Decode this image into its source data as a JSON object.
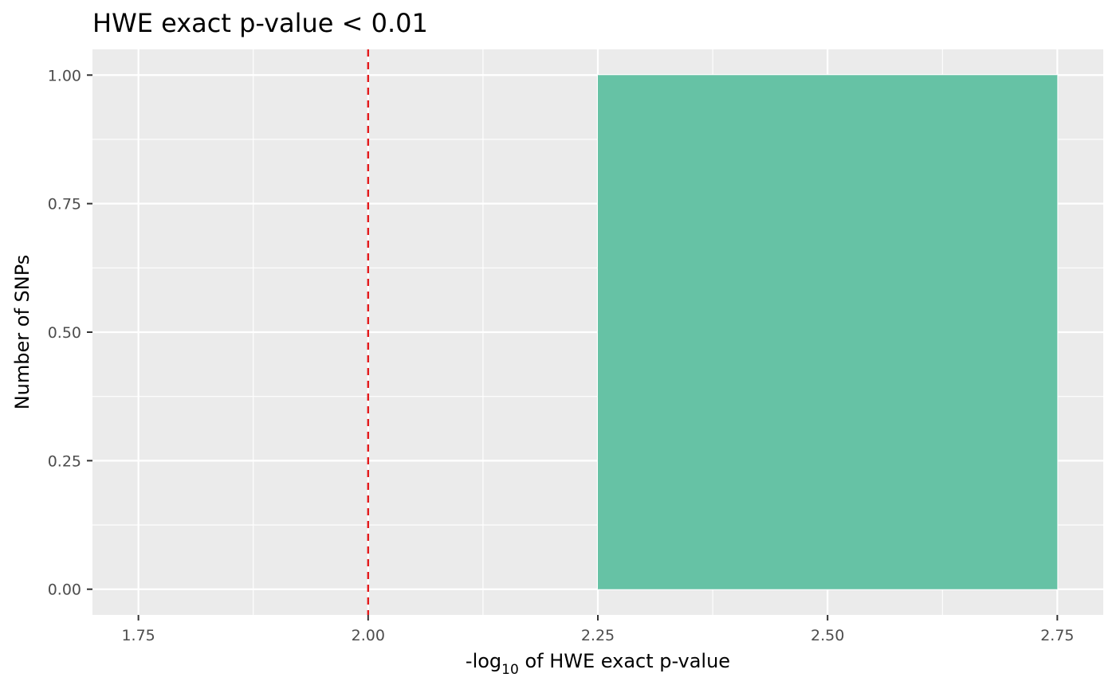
{
  "chart_data": {
    "type": "bar",
    "title": "HWE exact p-value < 0.01",
    "xlabel": {
      "prefix": "-log",
      "subscript": "10",
      "suffix": " of HWE exact p-value"
    },
    "ylabel": "Number of SNPs",
    "xlim": [
      1.7,
      2.8
    ],
    "ylim": [
      -0.05,
      1.05
    ],
    "x_ticks": [
      {
        "value": 1.75,
        "label": "1.75"
      },
      {
        "value": 2.0,
        "label": "2.00"
      },
      {
        "value": 2.25,
        "label": "2.25"
      },
      {
        "value": 2.5,
        "label": "2.50"
      },
      {
        "value": 2.75,
        "label": "2.75"
      }
    ],
    "y_ticks": [
      {
        "value": 0,
        "label": "0.00"
      },
      {
        "value": 0.25,
        "label": "0.25"
      },
      {
        "value": 0.5,
        "label": "0.50"
      },
      {
        "value": 0.75,
        "label": "0.75"
      },
      {
        "value": 1.0,
        "label": "1.00"
      }
    ],
    "bins": [
      {
        "xmin": 2.25,
        "xmax": 2.75,
        "count": 1
      }
    ],
    "threshold_line": {
      "x": 2.0,
      "style": "dashed",
      "color": "#e31a1c"
    },
    "bar_color": "#66c2a5",
    "panel_background": "#ebebeb",
    "grid": true,
    "legend": "none"
  }
}
